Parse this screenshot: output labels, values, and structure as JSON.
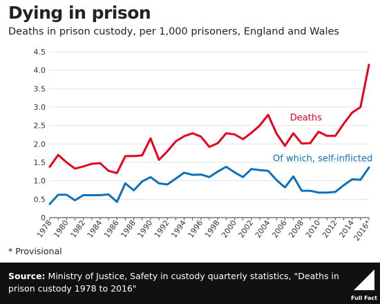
{
  "title": "Dying in prison",
  "subtitle": "Deaths in prison custody, per 1,000 prisoners, England and Wales",
  "note": "* Provisional",
  "footer": {
    "source_label": "Source:",
    "source_text": "Ministry of Justice, Safety in custody quarterly statistics, \"Deaths in prison custody 1978 to 2016\"",
    "logo_text": "Full Fact"
  },
  "colors": {
    "deaths": "#e8001c",
    "self_inflicted": "#0a72b8",
    "grid": "#e2e2e2",
    "footer_bg": "#111111"
  },
  "chart_data": {
    "type": "line",
    "title": "",
    "xlabel": "",
    "ylabel": "",
    "ylim": [
      0,
      4.5
    ],
    "yticks": [
      "0",
      "0.5",
      "1.0",
      "1.5",
      "2.0",
      "2.5",
      "3.0",
      "3.5",
      "4.0",
      "4.5"
    ],
    "xtick_labels": [
      "1978",
      "1980",
      "1982",
      "1984",
      "1986",
      "1988",
      "1990",
      "1992",
      "1994",
      "1996",
      "1998",
      "2000",
      "2002",
      "2004",
      "2006",
      "2008",
      "2010",
      "2012",
      "2014",
      "2016*"
    ],
    "grid": true,
    "x": [
      1978,
      1979,
      1980,
      1981,
      1982,
      1983,
      1984,
      1985,
      1986,
      1987,
      1988,
      1989,
      1990,
      1991,
      1992,
      1993,
      1994,
      1995,
      1996,
      1997,
      1998,
      1999,
      2000,
      2001,
      2002,
      2003,
      2004,
      2005,
      2006,
      2007,
      2008,
      2009,
      2010,
      2011,
      2012,
      2013,
      2014,
      2015,
      2016
    ],
    "series": [
      {
        "name": "Deaths",
        "color": "#e8001c",
        "values": [
          1.38,
          1.7,
          1.5,
          1.33,
          1.39,
          1.46,
          1.48,
          1.27,
          1.21,
          1.67,
          1.67,
          1.69,
          2.15,
          1.57,
          1.8,
          2.07,
          2.21,
          2.29,
          2.2,
          1.92,
          2.02,
          2.29,
          2.26,
          2.13,
          2.3,
          2.5,
          2.79,
          2.28,
          1.95,
          2.29,
          2.01,
          2.02,
          2.33,
          2.22,
          2.22,
          2.55,
          2.85,
          3.0,
          4.15
        ]
      },
      {
        "name": "Of which, self-inflicted",
        "color": "#0a72b8",
        "values": [
          0.37,
          0.62,
          0.62,
          0.47,
          0.61,
          0.61,
          0.61,
          0.63,
          0.43,
          0.93,
          0.74,
          0.98,
          1.1,
          0.93,
          0.9,
          1.06,
          1.22,
          1.16,
          1.17,
          1.1,
          1.25,
          1.38,
          1.23,
          1.1,
          1.32,
          1.29,
          1.27,
          1.02,
          0.82,
          1.12,
          0.73,
          0.73,
          0.68,
          0.68,
          0.7,
          0.88,
          1.04,
          1.03,
          1.36
        ]
      }
    ]
  }
}
